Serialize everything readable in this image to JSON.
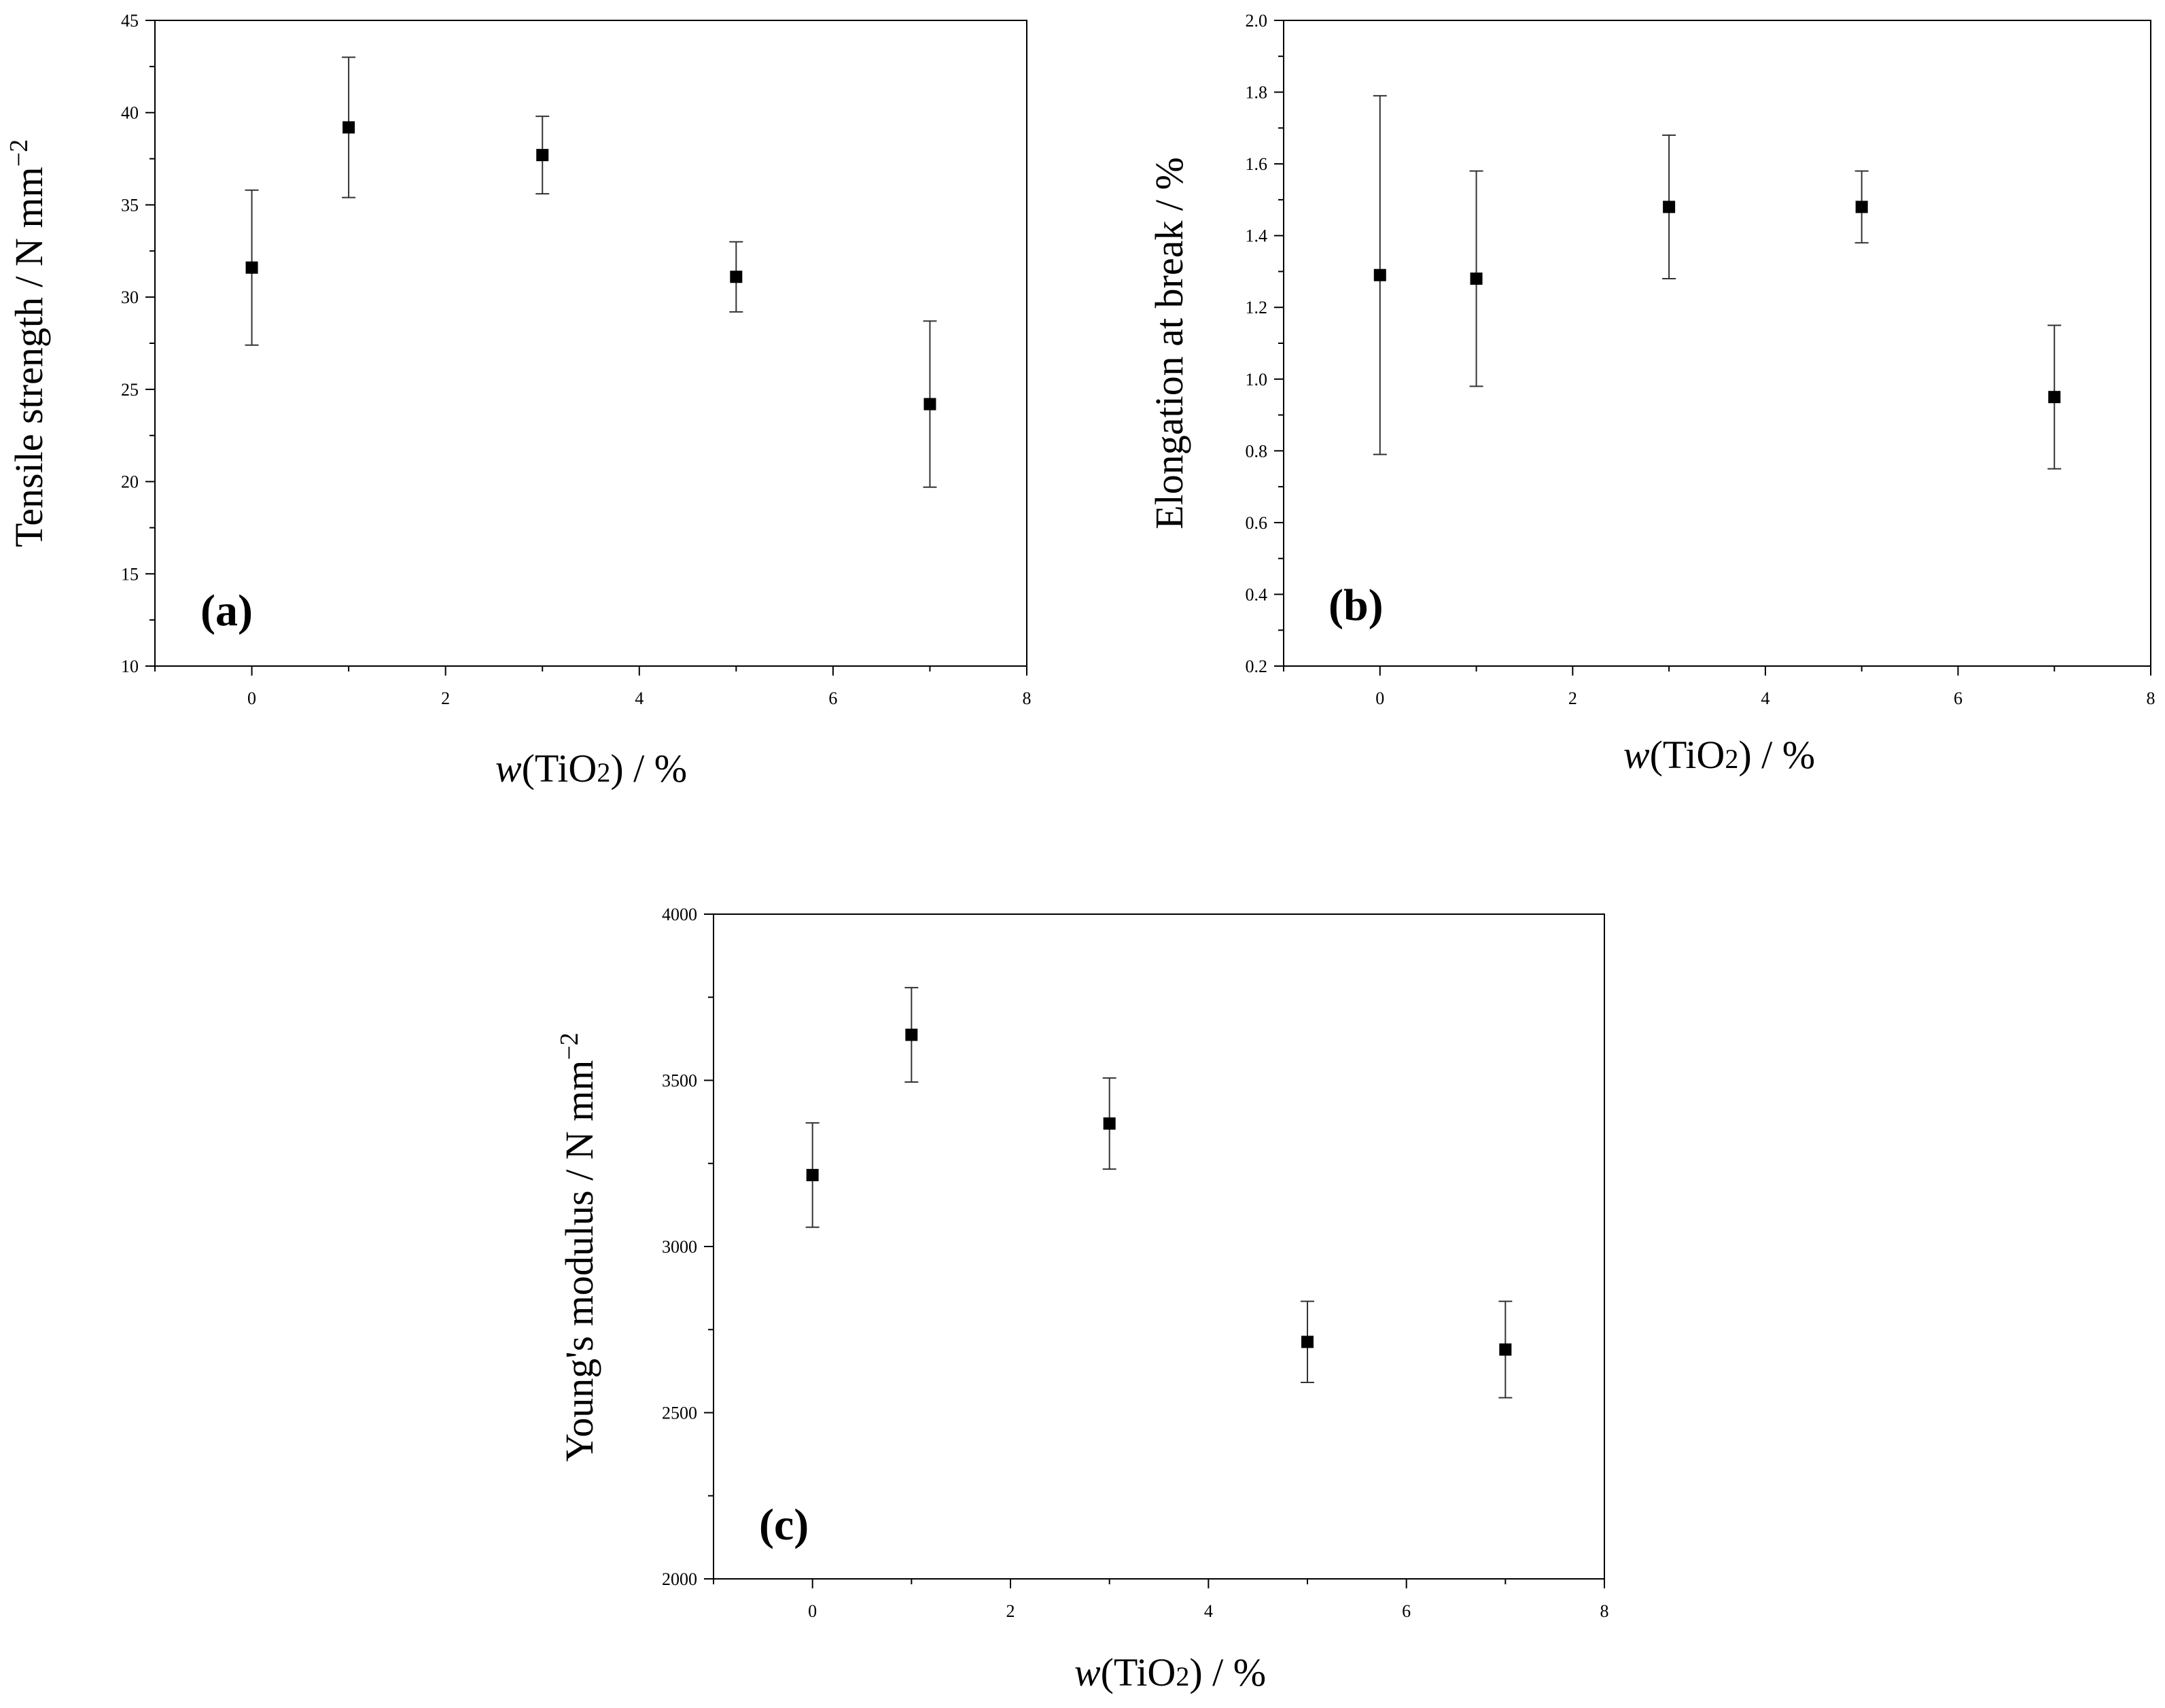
{
  "chart_data": [
    {
      "type": "scatter",
      "panel_label": "(a)",
      "xlabel": {
        "italic": "w",
        "pre": "(TiO",
        "sub": "2",
        "post": ") / %"
      },
      "ylabel": {
        "text": "Tensile strength / N mm",
        "sup": "−2"
      },
      "xlim": [
        -1,
        8
      ],
      "ylim": [
        10,
        45
      ],
      "xticks": [
        0,
        2,
        4,
        6,
        8
      ],
      "yticks": [
        10,
        15,
        20,
        25,
        30,
        35,
        40,
        45
      ],
      "grid": false,
      "points": [
        {
          "x": 0,
          "y": 31.6,
          "err": 4.2
        },
        {
          "x": 1,
          "y": 39.2,
          "err": 3.8
        },
        {
          "x": 3,
          "y": 37.7,
          "err": 2.1
        },
        {
          "x": 5,
          "y": 31.1,
          "err": 1.9
        },
        {
          "x": 7,
          "y": 24.2,
          "err": 4.5
        }
      ]
    },
    {
      "type": "scatter",
      "panel_label": "(b)",
      "xlabel": {
        "italic": "w",
        "pre": "(TiO",
        "sub": "2",
        "post": ") / %"
      },
      "ylabel": {
        "text": "Elongation at break / %",
        "sup": ""
      },
      "xlim": [
        -1,
        8
      ],
      "ylim": [
        0.2,
        2.0
      ],
      "xticks": [
        0,
        2,
        4,
        6,
        8
      ],
      "yticks": [
        "0.2",
        "0.4",
        "0.6",
        "0.8",
        "1.0",
        "1.2",
        "1.4",
        "1.6",
        "1.8",
        "2.0"
      ],
      "grid": false,
      "points": [
        {
          "x": 0,
          "y": 1.29,
          "err": 0.5
        },
        {
          "x": 1,
          "y": 1.28,
          "err": 0.3
        },
        {
          "x": 3,
          "y": 1.48,
          "err": 0.2
        },
        {
          "x": 5,
          "y": 1.48,
          "err": 0.1
        },
        {
          "x": 7,
          "y": 0.95,
          "err": 0.2
        }
      ]
    },
    {
      "type": "scatter",
      "panel_label": "(c)",
      "xlabel": {
        "italic": "w",
        "pre": "(TiO",
        "sub": "2",
        "post": ") / %"
      },
      "ylabel": {
        "text": "Young's modulus / N mm",
        "sup": "−2"
      },
      "xlim": [
        -1,
        8
      ],
      "ylim": [
        2000,
        4000
      ],
      "xticks": [
        0,
        2,
        4,
        6,
        8
      ],
      "yticks": [
        2000,
        2500,
        3000,
        3500,
        4000
      ],
      "grid": false,
      "points": [
        {
          "x": 0,
          "y": 3215,
          "err": 157
        },
        {
          "x": 1,
          "y": 3637,
          "err": 142
        },
        {
          "x": 3,
          "y": 3370,
          "err": 137
        },
        {
          "x": 5,
          "y": 2713,
          "err": 122
        },
        {
          "x": 7,
          "y": 2690,
          "err": 145
        }
      ]
    }
  ]
}
